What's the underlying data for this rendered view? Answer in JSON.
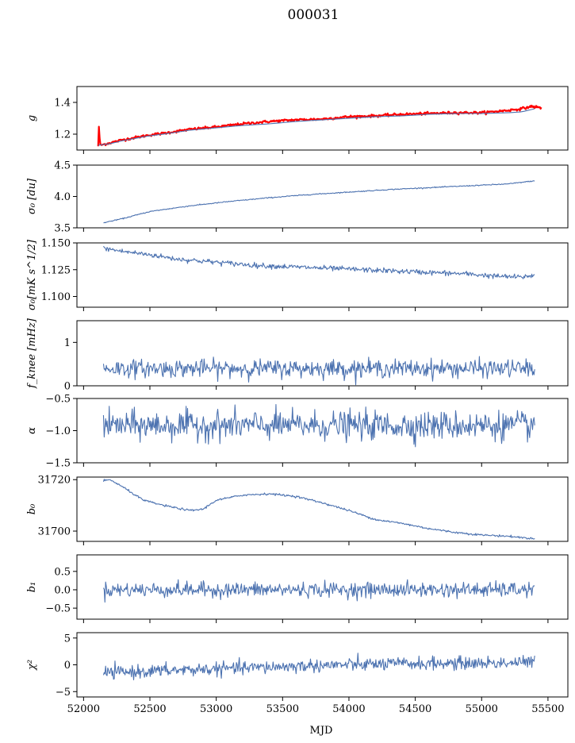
{
  "figure": {
    "title": "000031",
    "xlabel": "MJD"
  },
  "chart_data": [
    {
      "type": "line",
      "ylabel": "g",
      "xlim": [
        51950,
        55650
      ],
      "ylim": [
        1.1,
        1.5
      ],
      "yticks": [
        1.2,
        1.4
      ],
      "ytick_labels": [
        "1.2",
        "1.4"
      ],
      "series": [
        {
          "color": "#ff0000",
          "noise": 0.004,
          "x": [
            52110,
            52115,
            52125,
            52200,
            52300,
            52400,
            52500,
            52600,
            52800,
            53000,
            53200,
            53400,
            53600,
            53800,
            54000,
            54200,
            54400,
            54600,
            54800,
            55000,
            55200,
            55300,
            55380,
            55450
          ],
          "y": [
            1.125,
            1.25,
            1.13,
            1.145,
            1.165,
            1.18,
            1.195,
            1.205,
            1.23,
            1.245,
            1.265,
            1.28,
            1.29,
            1.295,
            1.31,
            1.315,
            1.325,
            1.33,
            1.335,
            1.335,
            1.35,
            1.36,
            1.375,
            1.365
          ]
        },
        {
          "color": "#4c72b0",
          "noise": 0.0,
          "x": [
            52110,
            52200,
            52300,
            52400,
            52500,
            52600,
            52800,
            53000,
            53200,
            53400,
            53600,
            53800,
            54000,
            54200,
            54400,
            54600,
            54800,
            55000,
            55200,
            55300,
            55400
          ],
          "y": [
            1.13,
            1.14,
            1.16,
            1.175,
            1.19,
            1.2,
            1.225,
            1.24,
            1.255,
            1.265,
            1.28,
            1.29,
            1.3,
            1.31,
            1.315,
            1.325,
            1.33,
            1.33,
            1.335,
            1.34,
            1.36
          ]
        }
      ]
    },
    {
      "type": "line",
      "ylabel": "σ₀ [du]",
      "xlim": [
        51950,
        55650
      ],
      "ylim": [
        3.5,
        4.5
      ],
      "yticks": [
        3.5,
        4.0,
        4.5
      ],
      "ytick_labels": [
        "3.5",
        "4.0",
        "4.5"
      ],
      "series": [
        {
          "color": "#4c72b0",
          "noise": 0.004,
          "x": [
            52150,
            52300,
            52500,
            52800,
            53100,
            53400,
            53700,
            54000,
            54300,
            54600,
            54900,
            55200,
            55400
          ],
          "y": [
            3.58,
            3.65,
            3.76,
            3.85,
            3.92,
            3.98,
            4.03,
            4.07,
            4.11,
            4.14,
            4.17,
            4.2,
            4.25
          ]
        }
      ]
    },
    {
      "type": "line",
      "ylabel": "σ₀[mK s^1/2]",
      "xlim": [
        51950,
        55650
      ],
      "ylim": [
        1.09,
        1.15
      ],
      "yticks": [
        1.1,
        1.125,
        1.15
      ],
      "ytick_labels": [
        "1.100",
        "1.125",
        "1.150"
      ],
      "series": [
        {
          "color": "#4c72b0",
          "noise": 0.0012,
          "x": [
            52150,
            52300,
            52500,
            52700,
            52900,
            53100,
            53300,
            53500,
            53700,
            53900,
            54100,
            54300,
            54500,
            54700,
            54900,
            55100,
            55300,
            55400
          ],
          "y": [
            1.145,
            1.142,
            1.139,
            1.135,
            1.133,
            1.131,
            1.129,
            1.128,
            1.127,
            1.126,
            1.125,
            1.124,
            1.123,
            1.122,
            1.121,
            1.119,
            1.118,
            1.12
          ]
        }
      ]
    },
    {
      "type": "line",
      "ylabel": "f_knee [mHz]",
      "xlim": [
        51950,
        55650
      ],
      "ylim": [
        0,
        1.5
      ],
      "yticks": [
        0,
        1
      ],
      "ytick_labels": [
        "0",
        "1"
      ],
      "series": [
        {
          "color": "#4c72b0",
          "noise": 0.1,
          "x": [
            52150,
            55400
          ],
          "y": [
            0.4,
            0.4
          ]
        }
      ]
    },
    {
      "type": "line",
      "ylabel": "α",
      "xlim": [
        51950,
        55650
      ],
      "ylim": [
        -1.5,
        -0.5
      ],
      "yticks": [
        -1.5,
        -1.0,
        -0.5
      ],
      "ytick_labels": [
        "−1.5",
        "−1.0",
        "−0.5"
      ],
      "series": [
        {
          "color": "#4c72b0",
          "noise": 0.11,
          "x": [
            52150,
            55400
          ],
          "y": [
            -0.92,
            -0.92
          ]
        }
      ]
    },
    {
      "type": "line",
      "ylabel": "b₀",
      "xlim": [
        51950,
        55650
      ],
      "ylim": [
        31696,
        31721
      ],
      "yticks": [
        31700,
        31720
      ],
      "ytick_labels": [
        "31700",
        "31720"
      ],
      "series": [
        {
          "color": "#4c72b0",
          "noise": 0.2,
          "x": [
            52150,
            52200,
            52300,
            52450,
            52600,
            52800,
            52900,
            53000,
            53200,
            53400,
            53600,
            53800,
            54000,
            54200,
            54400,
            54600,
            54800,
            55000,
            55200,
            55400
          ],
          "y": [
            31719.5,
            31720,
            31717,
            31712,
            31710,
            31708,
            31708.5,
            31712,
            31714,
            31714.5,
            31713.5,
            31711,
            31708,
            31704.5,
            31703,
            31701,
            31699.5,
            31698.5,
            31698,
            31697
          ]
        }
      ]
    },
    {
      "type": "line",
      "ylabel": "b₁",
      "xlim": [
        51950,
        55650
      ],
      "ylim": [
        -0.8,
        0.95
      ],
      "yticks": [
        -0.5,
        0.0,
        0.5
      ],
      "ytick_labels": [
        "−0.5",
        "0.0",
        "0.5"
      ],
      "series": [
        {
          "color": "#4c72b0",
          "noise": 0.1,
          "x": [
            52150,
            55400
          ],
          "y": [
            0.0,
            0.0
          ]
        }
      ]
    },
    {
      "type": "line",
      "ylabel": "χ²",
      "xlim": [
        51950,
        55650
      ],
      "ylim": [
        -6,
        6
      ],
      "yticks": [
        -5,
        0,
        5
      ],
      "ytick_labels": [
        "−5",
        "0",
        "5"
      ],
      "xticks": [
        52000,
        52500,
        53000,
        53500,
        54000,
        54500,
        55000,
        55500
      ],
      "xtick_labels": [
        "52000",
        "52500",
        "53000",
        "53500",
        "54000",
        "54500",
        "55000",
        "55500"
      ],
      "series": [
        {
          "color": "#4c72b0",
          "noise": 0.6,
          "x": [
            52150,
            52600,
            53200,
            53800,
            54400,
            55000,
            55400
          ],
          "y": [
            -1.5,
            -1.1,
            -0.6,
            -0.1,
            0.2,
            0.3,
            0.5
          ]
        }
      ]
    }
  ]
}
